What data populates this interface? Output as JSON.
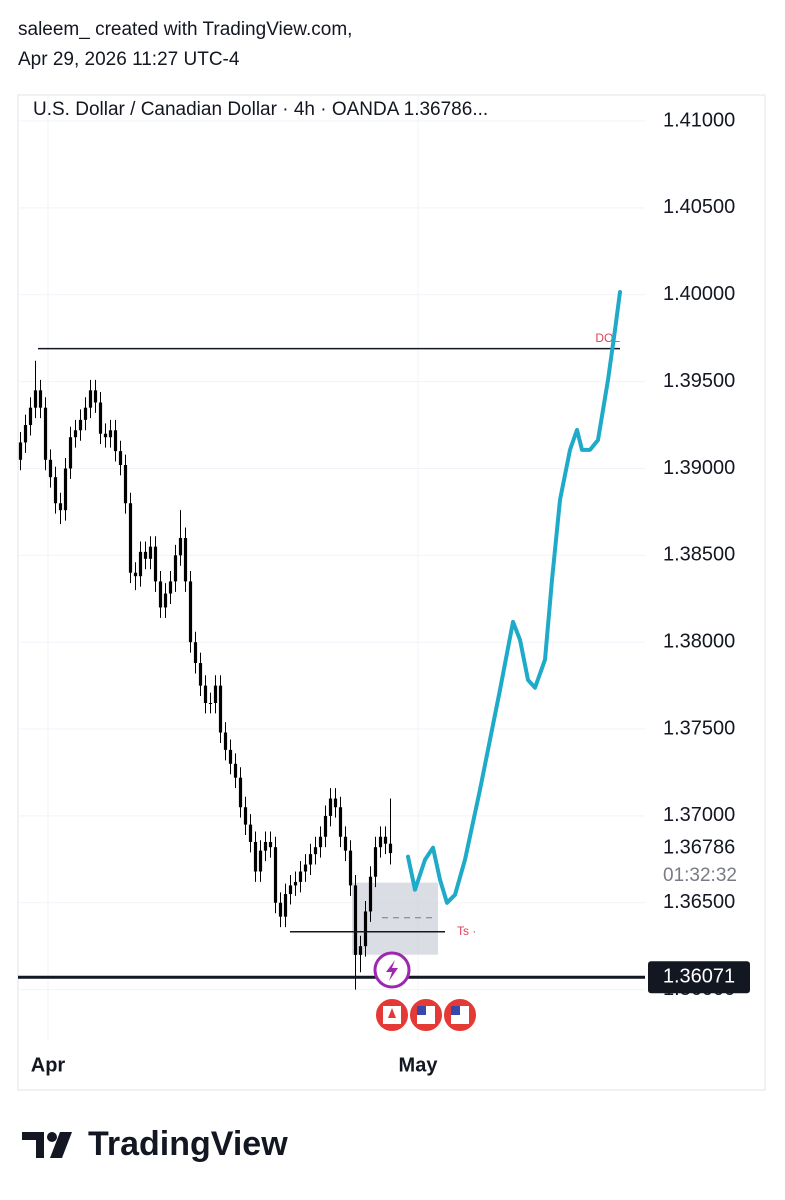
{
  "header": {
    "line1": "saleem_ created with TradingView.com,",
    "line2": "Apr 29, 2026 11:27 UTC-4"
  },
  "chart_data": {
    "type": "candlestick",
    "title": "U.S. Dollar / Canadian Dollar · 4h · OANDA  1.36786...",
    "color": "#000000",
    "open": [
      1.3905,
      1.3915,
      1.3925,
      1.3935,
      1.3945,
      1.3935,
      1.3905,
      1.3895,
      1.388,
      1.3876,
      1.39,
      1.3918,
      1.3922,
      1.3928,
      1.3935,
      1.3945,
      1.3938,
      1.392,
      1.3918,
      1.3922,
      1.391,
      1.3902,
      1.388,
      1.384,
      1.3838,
      1.3852,
      1.3848,
      1.3855,
      1.3835,
      1.382,
      1.3828,
      1.3835,
      1.385,
      1.386,
      1.3835,
      1.38,
      1.3788,
      1.3775,
      1.3765,
      1.3765,
      1.3775,
      1.3748,
      1.3738,
      1.373,
      1.3722,
      1.3705,
      1.3695,
      1.3685,
      1.3668,
      1.368,
      1.3685,
      1.3682,
      1.365,
      1.3642,
      1.3655,
      1.366,
      1.3662,
      1.3668,
      1.3672,
      1.3678,
      1.3682,
      1.3688,
      1.37,
      1.371,
      1.3705,
      1.3688,
      1.368,
      1.366,
      1.362,
      1.3625,
      1.3645,
      1.3665,
      1.3682,
      1.3688,
      1.3684
    ],
    "high": [
      1.3921,
      1.3931,
      1.3941,
      1.3962,
      1.3951,
      1.3941,
      1.3911,
      1.3901,
      1.3886,
      1.3906,
      1.3924,
      1.3928,
      1.3934,
      1.3941,
      1.3951,
      1.3951,
      1.3944,
      1.3926,
      1.3928,
      1.3928,
      1.3916,
      1.3908,
      1.3886,
      1.3846,
      1.3858,
      1.3858,
      1.3861,
      1.3861,
      1.3841,
      1.3834,
      1.3841,
      1.3856,
      1.3876,
      1.3866,
      1.3841,
      1.3806,
      1.3794,
      1.3781,
      1.3771,
      1.3781,
      1.3781,
      1.3754,
      1.3744,
      1.3736,
      1.3728,
      1.3711,
      1.3701,
      1.3691,
      1.3686,
      1.3691,
      1.3691,
      1.3688,
      1.3656,
      1.3661,
      1.3666,
      1.3668,
      1.3674,
      1.3678,
      1.3684,
      1.3688,
      1.3694,
      1.3706,
      1.3716,
      1.3716,
      1.3711,
      1.3694,
      1.3686,
      1.3666,
      1.3631,
      1.3651,
      1.3671,
      1.3688,
      1.3694,
      1.3694,
      1.371
    ],
    "low": [
      1.3899,
      1.3909,
      1.3919,
      1.3929,
      1.3929,
      1.3899,
      1.3889,
      1.3874,
      1.3868,
      1.387,
      1.3894,
      1.3912,
      1.3916,
      1.3922,
      1.3929,
      1.3932,
      1.3914,
      1.3912,
      1.3912,
      1.3904,
      1.3896,
      1.3874,
      1.3834,
      1.383,
      1.3832,
      1.3842,
      1.3842,
      1.3829,
      1.3814,
      1.3814,
      1.3822,
      1.3829,
      1.3844,
      1.3829,
      1.3794,
      1.3782,
      1.3769,
      1.3759,
      1.3759,
      1.3759,
      1.3742,
      1.3732,
      1.3724,
      1.3716,
      1.3699,
      1.3689,
      1.3679,
      1.3662,
      1.3662,
      1.3674,
      1.3676,
      1.3644,
      1.3636,
      1.3636,
      1.3649,
      1.3654,
      1.3656,
      1.3662,
      1.3666,
      1.3672,
      1.3676,
      1.3682,
      1.3694,
      1.3699,
      1.3682,
      1.3674,
      1.3654,
      1.36,
      1.361,
      1.3619,
      1.3639,
      1.3659,
      1.3676,
      1.3678,
      1.3672
    ],
    "close": [
      1.3915,
      1.3925,
      1.3935,
      1.3945,
      1.3935,
      1.3905,
      1.3895,
      1.388,
      1.3876,
      1.39,
      1.3918,
      1.3922,
      1.3928,
      1.3935,
      1.3945,
      1.3938,
      1.392,
      1.3918,
      1.3922,
      1.391,
      1.3902,
      1.388,
      1.384,
      1.3838,
      1.3852,
      1.3848,
      1.3855,
      1.3835,
      1.382,
      1.3828,
      1.3835,
      1.385,
      1.386,
      1.3835,
      1.38,
      1.3788,
      1.3775,
      1.3765,
      1.3765,
      1.3775,
      1.3748,
      1.3738,
      1.373,
      1.3722,
      1.3705,
      1.3695,
      1.3685,
      1.3668,
      1.368,
      1.3685,
      1.3682,
      1.365,
      1.3642,
      1.3655,
      1.366,
      1.3662,
      1.3668,
      1.3672,
      1.3678,
      1.3682,
      1.3688,
      1.37,
      1.371,
      1.3705,
      1.3688,
      1.368,
      1.366,
      1.362,
      1.3625,
      1.3645,
      1.3665,
      1.3682,
      1.3688,
      1.3684,
      1.36786
    ],
    "xlim": [
      0,
      125.4
    ],
    "xticks": [
      {
        "value": 6,
        "label": "Apr"
      },
      {
        "value": 80,
        "label": "May"
      }
    ],
    "ylim": [
      1.3571,
      1.4115
    ],
    "yticks": [
      {
        "value": 1.41,
        "label": "1.41000"
      },
      {
        "value": 1.405,
        "label": "1.40500"
      },
      {
        "value": 1.4,
        "label": "1.40000"
      },
      {
        "value": 1.395,
        "label": "1.39500"
      },
      {
        "value": 1.39,
        "label": "1.39000"
      },
      {
        "value": 1.385,
        "label": "1.38500"
      },
      {
        "value": 1.38,
        "label": "1.38000"
      },
      {
        "value": 1.375,
        "label": "1.37500"
      },
      {
        "value": 1.37,
        "label": "1.37000"
      },
      {
        "value": 1.365,
        "label": "1.36500"
      },
      {
        "value": 1.36,
        "label": "1.36000"
      }
    ],
    "grid": true,
    "projection": {
      "color": "#1eaac8",
      "x": [
        78,
        79.4,
        81.4,
        83,
        84.4,
        85.8,
        87.4,
        89.4,
        92.4,
        96.4,
        99,
        100.4,
        102,
        103.4,
        105.4,
        106.8,
        108.4,
        110.4,
        111.8,
        112.8,
        114.4,
        116,
        118,
        119.4,
        120.4
      ],
      "values": [
        1.36765,
        1.36575,
        1.36748,
        1.36817,
        1.36633,
        1.365,
        1.36546,
        1.36748,
        1.37151,
        1.37726,
        1.38117,
        1.38014,
        1.37783,
        1.37738,
        1.37899,
        1.38359,
        1.38819,
        1.39107,
        1.39222,
        1.39107,
        1.39107,
        1.39164,
        1.3951,
        1.39797,
        1.40016
      ]
    },
    "levels": [
      {
        "label": "DOL",
        "value": 1.3969,
        "x": [
          4,
          120.4
        ],
        "label_color": "#e0405a"
      },
      {
        "label": "Ts ·",
        "value": 1.36333,
        "x": [
          54.4,
          85.4
        ],
        "label_color": "#e0405a"
      }
    ],
    "zone": {
      "low": 1.36201,
      "high": 1.36616,
      "mid": 1.36414,
      "x": [
        66.8,
        84
      ]
    },
    "support": 1.36071,
    "last_price": 1.36786,
    "countdown": "01:32:32"
  },
  "footer": {
    "logo": "TradingView"
  }
}
